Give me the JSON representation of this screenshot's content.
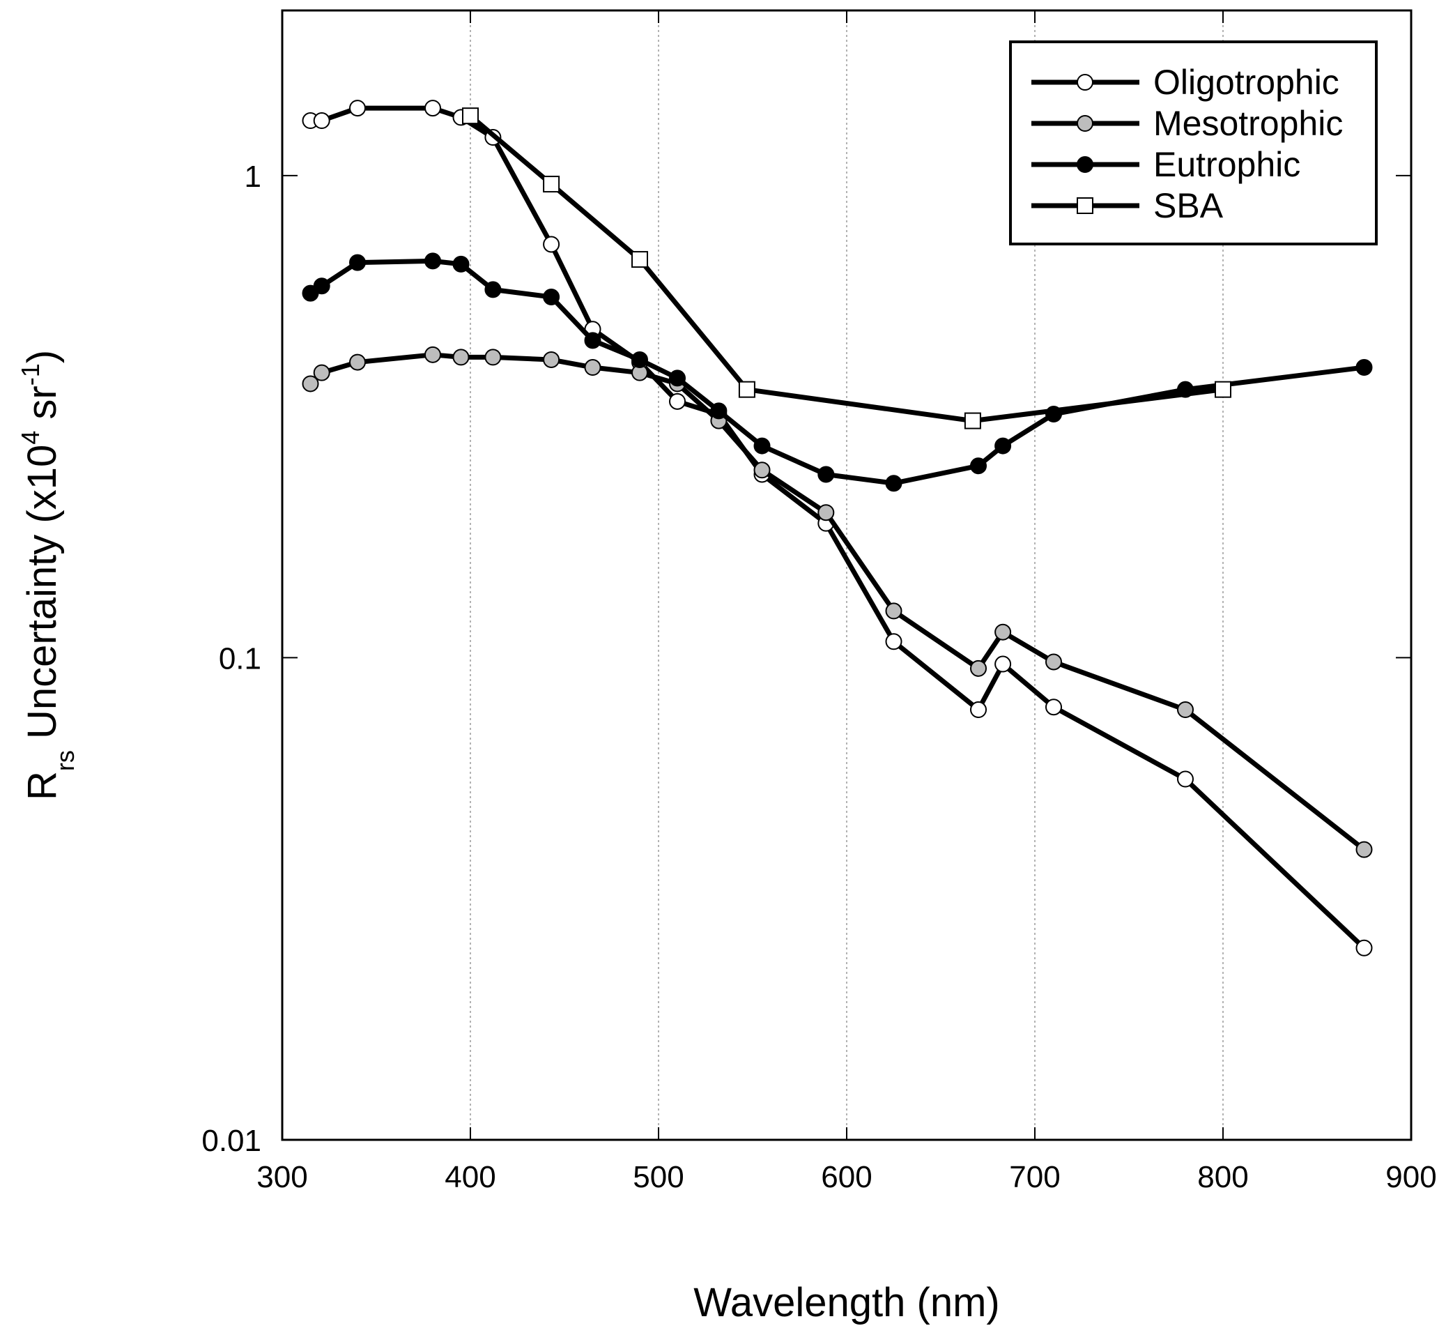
{
  "chart_data": {
    "type": "line",
    "xlabel": "Wavelength (nm)",
    "ylabel": {
      "main": "R",
      "main_sub": "rs",
      "rest": " Uncertainty (x10",
      "sup1": "4",
      "mid": " sr",
      "sup2": "-1",
      "end": ")"
    },
    "xlim": [
      300,
      900
    ],
    "ylim": [
      0.01,
      2.2
    ],
    "yscale": "log",
    "xticks": [
      300,
      400,
      500,
      600,
      700,
      800,
      900
    ],
    "xtick_labels": [
      "300",
      "400",
      "500",
      "600",
      "700",
      "800",
      "900"
    ],
    "yticks": [
      0.01,
      0.1,
      1
    ],
    "ytick_labels": [
      "0.01",
      "0.1",
      "1"
    ],
    "grid": "vertical-dotted",
    "legend": "top-right",
    "series": [
      {
        "name": "Oligotrophic",
        "marker": "open-circle",
        "x": [
          315,
          321,
          340,
          380,
          395,
          412,
          443,
          465,
          490,
          510,
          532,
          555,
          589,
          625,
          670,
          683,
          710,
          780,
          875
        ],
        "y": [
          1.3,
          1.3,
          1.38,
          1.38,
          1.32,
          1.2,
          0.72,
          0.48,
          0.41,
          0.34,
          0.32,
          0.24,
          0.19,
          0.108,
          0.078,
          0.097,
          0.079,
          0.056,
          0.025
        ]
      },
      {
        "name": "Mesotrophic",
        "marker": "gray-circle",
        "x": [
          315,
          321,
          340,
          380,
          395,
          412,
          443,
          465,
          490,
          510,
          532,
          555,
          589,
          625,
          670,
          683,
          710,
          780,
          875
        ],
        "y": [
          0.37,
          0.39,
          0.41,
          0.425,
          0.42,
          0.42,
          0.415,
          0.4,
          0.39,
          0.37,
          0.31,
          0.245,
          0.2,
          0.125,
          0.095,
          0.113,
          0.098,
          0.078,
          0.04
        ]
      },
      {
        "name": "Eutrophic",
        "marker": "filled-circle",
        "x": [
          315,
          321,
          340,
          380,
          395,
          412,
          443,
          465,
          490,
          510,
          532,
          555,
          589,
          625,
          670,
          683,
          710,
          780,
          875
        ],
        "y": [
          0.57,
          0.59,
          0.66,
          0.665,
          0.655,
          0.58,
          0.56,
          0.455,
          0.415,
          0.38,
          0.325,
          0.275,
          0.24,
          0.23,
          0.25,
          0.275,
          0.32,
          0.36,
          0.4
        ]
      },
      {
        "name": "SBA",
        "marker": "open-square",
        "x": [
          400,
          443,
          490,
          547,
          667,
          800
        ],
        "y": [
          1.33,
          0.96,
          0.67,
          0.36,
          0.31,
          0.36
        ]
      }
    ]
  }
}
